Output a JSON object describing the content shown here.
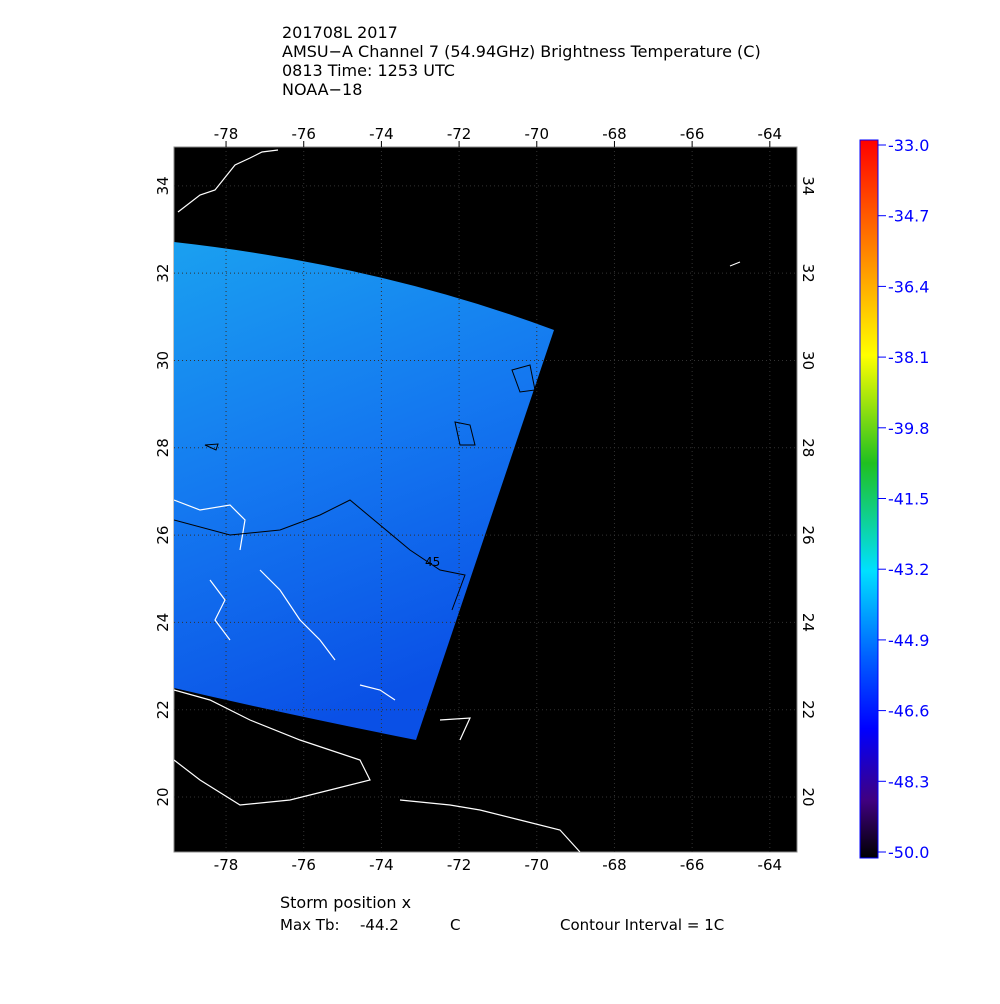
{
  "header": {
    "lines": [
      "201708L 2017",
      "AMSU−A Channel 7 (54.94GHz) Brightness Temperature (C)",
      "0813 Time: 1253 UTC",
      "NOAA−18"
    ]
  },
  "map": {
    "xlim": [
      -79.34,
      -63.3
    ],
    "ylim": [
      18.74,
      34.89
    ],
    "xticks": [
      -78,
      -76,
      -74,
      -72,
      -70,
      -68,
      -66,
      -64
    ],
    "yticks": [
      20,
      22,
      24,
      26,
      28,
      30,
      32,
      34
    ],
    "contour_label": "45"
  },
  "colorbar": {
    "lim": [
      -50,
      -33
    ],
    "ticks": [
      {
        "value": -33,
        "label": "-33.0"
      },
      -34.7,
      -36.4,
      -38.1,
      -39.8,
      -41.5,
      -43.2,
      -44.9,
      -46.6,
      -48.3,
      {
        "value": -50,
        "label": "-50.0"
      }
    ]
  },
  "footer": {
    "storm": "Storm position x",
    "max_label": "Max Tb:",
    "max_value": "-44.2",
    "unit": "C",
    "contour": "Contour Interval = 1C"
  }
}
